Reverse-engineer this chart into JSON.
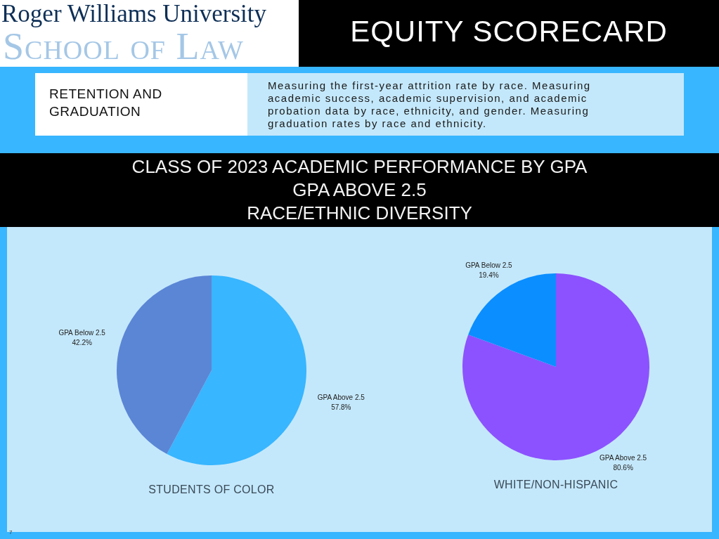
{
  "chart_data": [
    {
      "type": "other",
      "title": "EQUITY SCORECARD",
      "subtitle": "CLASS OF 2023 ACADEMIC PERFORMANCE BY GPA\nGPA ABOVE 2.5\nRACE/ETHNIC DIVERSITY",
      "annotations": [
        "Roger Williams University",
        "School of Law",
        "RETENTION AND GRADUATION",
        "Measuring the first-year attrition rate by race. Measuring academic success, academic supervision, and academic probation data by race, ethnicity, and gender. Measuring graduation rates by race and ethnicity.",
        "7"
      ]
    },
    {
      "type": "pie",
      "title": "STUDENTS OF COLOR",
      "categories": [
        "GPA Above 2.5",
        "GPA Below 2.5"
      ],
      "values": [
        57.8,
        42.2
      ],
      "colors": [
        "#38b6ff",
        "#5b86d6"
      ],
      "value_labels": [
        "57.8%",
        "42.2%"
      ]
    },
    {
      "type": "pie",
      "title": "WHITE/NON-HISPANIC",
      "categories": [
        "GPA Above 2.5",
        "GPA Below 2.5"
      ],
      "values": [
        80.6,
        19.4
      ],
      "colors": [
        "#8c52ff",
        "#0b8eff"
      ],
      "value_labels": [
        "80.6%",
        "19.4%"
      ]
    }
  ]
}
